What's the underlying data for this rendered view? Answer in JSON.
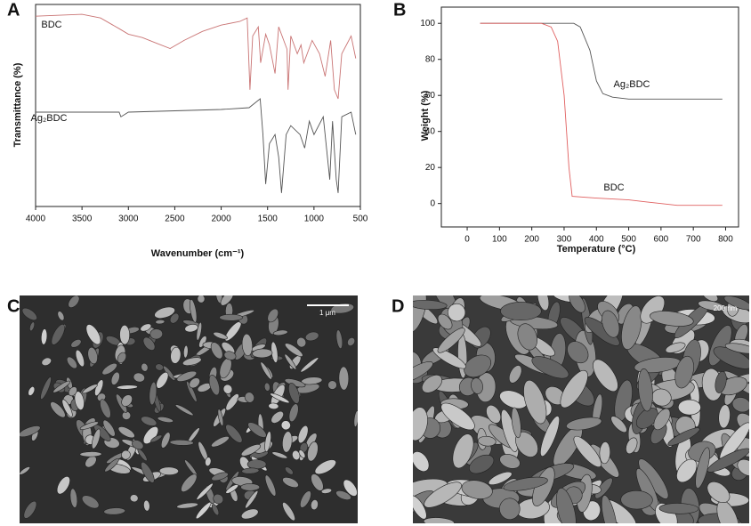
{
  "chart_data": [
    {
      "type": "line",
      "label": "A",
      "xlabel": "Wavenumber (cm⁻¹)",
      "ylabel": "Transmittance (%)",
      "xlim": [
        4000,
        500
      ],
      "xticks": [
        4000,
        3500,
        3000,
        2500,
        2000,
        1500,
        1000,
        500
      ],
      "ylim": [
        0,
        100
      ],
      "series": [
        {
          "name": "BDC",
          "color": "#c97474",
          "x": [
            4000,
            3500,
            3300,
            3100,
            3000,
            2850,
            2700,
            2550,
            2400,
            2200,
            2000,
            1800,
            1720,
            1690,
            1660,
            1600,
            1575,
            1520,
            1480,
            1420,
            1380,
            1290,
            1280,
            1250,
            1180,
            1140,
            1110,
            1020,
            940,
            880,
            820,
            780,
            740,
            700,
            600,
            550
          ],
          "values": [
            94.2,
            95.1,
            93.3,
            88,
            85.3,
            83.6,
            80.9,
            78.2,
            82.2,
            86.7,
            89.8,
            91.6,
            93.3,
            57.8,
            84.4,
            88.9,
            71.1,
            85.3,
            80,
            65.8,
            88.9,
            77.8,
            57.8,
            84.4,
            75.6,
            80,
            71.1,
            82.2,
            75.6,
            64.4,
            82.2,
            57.8,
            53.3,
            75.6,
            84.4,
            73.3
          ]
        },
        {
          "name": "Ag₂BDC",
          "color": "#555555",
          "x": [
            4000,
            3100,
            3080,
            3000,
            2000,
            1700,
            1580,
            1550,
            1520,
            1480,
            1420,
            1380,
            1350,
            1300,
            1250,
            1150,
            1100,
            1050,
            1000,
            900,
            830,
            800,
            760,
            740,
            700,
            600,
            550
          ],
          "values": [
            46.7,
            46.7,
            44.4,
            46.7,
            48,
            48.9,
            53.3,
            35.6,
            11.1,
            31.1,
            35.6,
            24.4,
            6.7,
            35.6,
            40,
            35.6,
            28.9,
            42.2,
            35.6,
            44.4,
            13.3,
            42.2,
            13.3,
            6.7,
            44.4,
            46.7,
            35.6
          ]
        }
      ]
    },
    {
      "type": "line",
      "label": "B",
      "xlabel": "Temperature (°C)",
      "ylabel": "Weight (%)",
      "xlim": [
        -80,
        840
      ],
      "xticks": [
        0,
        100,
        200,
        300,
        400,
        500,
        600,
        700,
        800
      ],
      "ylim": [
        -13,
        109
      ],
      "yticks": [
        0,
        20,
        40,
        60,
        80,
        100
      ],
      "series": [
        {
          "name": "Ag₂BDC",
          "color": "#555555",
          "x": [
            40,
            200,
            330,
            350,
            380,
            400,
            420,
            450,
            500,
            600,
            700,
            790
          ],
          "values": [
            100,
            100,
            100,
            98,
            85,
            68,
            61,
            59,
            58,
            58,
            58,
            58
          ]
        },
        {
          "name": "BDC",
          "color": "#e06060",
          "x": [
            40,
            150,
            230,
            260,
            280,
            300,
            315,
            325,
            400,
            500,
            550,
            600,
            650,
            790
          ],
          "values": [
            100,
            100,
            100,
            98,
            90,
            60,
            20,
            4,
            3,
            2,
            1,
            0,
            -1,
            -1
          ]
        }
      ]
    }
  ],
  "images": [
    {
      "label": "C",
      "scale_bar": "1 μm"
    },
    {
      "label": "D",
      "scale_bar": "200 nm"
    }
  ]
}
